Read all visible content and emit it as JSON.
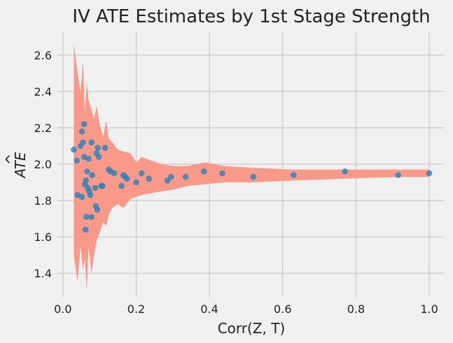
{
  "chart_data": {
    "type": "scatter",
    "title": "IV ATE Estimates by 1st Stage Strength",
    "xlabel": "Corr(Z, T)",
    "ylabel": "ATE",
    "ylabel_accent": "^",
    "xlim": [
      -0.015,
      1.04
    ],
    "ylim": [
      1.27,
      2.73
    ],
    "xticks": [
      "0.0",
      "0.2",
      "0.4",
      "0.6",
      "0.8",
      "1.0"
    ],
    "yticks": [
      "1.4",
      "1.6",
      "1.8",
      "2.0",
      "2.2",
      "2.4",
      "2.6"
    ],
    "grid": true,
    "colors": {
      "band": "#f8998a",
      "points": "#2d7fb8"
    },
    "band": [
      {
        "x": 0.03,
        "lo": 1.5,
        "hi": 2.66
      },
      {
        "x": 0.04,
        "lo": 1.35,
        "hi": 2.5
      },
      {
        "x": 0.048,
        "lo": 1.55,
        "hi": 2.4
      },
      {
        "x": 0.055,
        "lo": 1.42,
        "hi": 2.57
      },
      {
        "x": 0.06,
        "lo": 1.48,
        "hi": 2.28
      },
      {
        "x": 0.065,
        "lo": 1.3,
        "hi": 2.45
      },
      {
        "x": 0.07,
        "lo": 1.55,
        "hi": 2.35
      },
      {
        "x": 0.078,
        "lo": 1.4,
        "hi": 2.3
      },
      {
        "x": 0.085,
        "lo": 1.5,
        "hi": 2.25
      },
      {
        "x": 0.092,
        "lo": 1.58,
        "hi": 2.32
      },
      {
        "x": 0.1,
        "lo": 1.62,
        "hi": 2.22
      },
      {
        "x": 0.11,
        "lo": 1.68,
        "hi": 2.15
      },
      {
        "x": 0.118,
        "lo": 1.66,
        "hi": 2.24
      },
      {
        "x": 0.125,
        "lo": 1.72,
        "hi": 2.14
      },
      {
        "x": 0.135,
        "lo": 1.76,
        "hi": 2.12
      },
      {
        "x": 0.15,
        "lo": 1.78,
        "hi": 2.08
      },
      {
        "x": 0.165,
        "lo": 1.76,
        "hi": 2.07
      },
      {
        "x": 0.185,
        "lo": 1.81,
        "hi": 2.06
      },
      {
        "x": 0.2,
        "lo": 1.82,
        "hi": 2.01
      },
      {
        "x": 0.215,
        "lo": 1.83,
        "hi": 2.04
      },
      {
        "x": 0.24,
        "lo": 1.84,
        "hi": 2.02
      },
      {
        "x": 0.27,
        "lo": 1.85,
        "hi": 2.0
      },
      {
        "x": 0.3,
        "lo": 1.86,
        "hi": 1.99
      },
      {
        "x": 0.34,
        "lo": 1.88,
        "hi": 1.99
      },
      {
        "x": 0.39,
        "lo": 1.89,
        "hi": 2.01
      },
      {
        "x": 0.44,
        "lo": 1.9,
        "hi": 1.99
      },
      {
        "x": 0.52,
        "lo": 1.9,
        "hi": 1.98
      },
      {
        "x": 0.63,
        "lo": 1.91,
        "hi": 1.97
      },
      {
        "x": 0.77,
        "lo": 1.92,
        "hi": 1.97
      },
      {
        "x": 0.92,
        "lo": 1.93,
        "hi": 1.97
      },
      {
        "x": 1.0,
        "lo": 1.93,
        "hi": 1.97
      }
    ],
    "points": [
      {
        "x": 0.03,
        "y": 2.08
      },
      {
        "x": 0.038,
        "y": 2.02
      },
      {
        "x": 0.04,
        "y": 1.83
      },
      {
        "x": 0.048,
        "y": 2.1
      },
      {
        "x": 0.052,
        "y": 2.18
      },
      {
        "x": 0.052,
        "y": 1.82
      },
      {
        "x": 0.055,
        "y": 2.12
      },
      {
        "x": 0.058,
        "y": 2.22
      },
      {
        "x": 0.058,
        "y": 2.04
      },
      {
        "x": 0.06,
        "y": 1.89
      },
      {
        "x": 0.062,
        "y": 1.64
      },
      {
        "x": 0.063,
        "y": 1.91
      },
      {
        "x": 0.064,
        "y": 1.71
      },
      {
        "x": 0.066,
        "y": 1.96
      },
      {
        "x": 0.068,
        "y": 1.87
      },
      {
        "x": 0.07,
        "y": 2.03
      },
      {
        "x": 0.072,
        "y": 1.85
      },
      {
        "x": 0.075,
        "y": 1.83
      },
      {
        "x": 0.078,
        "y": 1.71
      },
      {
        "x": 0.078,
        "y": 2.12
      },
      {
        "x": 0.08,
        "y": 1.94
      },
      {
        "x": 0.088,
        "y": 1.87
      },
      {
        "x": 0.09,
        "y": 1.77
      },
      {
        "x": 0.092,
        "y": 2.06
      },
      {
        "x": 0.094,
        "y": 1.75
      },
      {
        "x": 0.095,
        "y": 2.09
      },
      {
        "x": 0.098,
        "y": 2.04
      },
      {
        "x": 0.105,
        "y": 1.88
      },
      {
        "x": 0.108,
        "y": 1.88
      },
      {
        "x": 0.115,
        "y": 2.09
      },
      {
        "x": 0.125,
        "y": 1.97
      },
      {
        "x": 0.13,
        "y": 1.96
      },
      {
        "x": 0.14,
        "y": 1.95
      },
      {
        "x": 0.16,
        "y": 1.88
      },
      {
        "x": 0.165,
        "y": 1.94
      },
      {
        "x": 0.17,
        "y": 1.93
      },
      {
        "x": 0.175,
        "y": 1.92
      },
      {
        "x": 0.2,
        "y": 1.9
      },
      {
        "x": 0.215,
        "y": 1.95
      },
      {
        "x": 0.235,
        "y": 1.92
      },
      {
        "x": 0.285,
        "y": 1.91
      },
      {
        "x": 0.295,
        "y": 1.93
      },
      {
        "x": 0.335,
        "y": 1.93
      },
      {
        "x": 0.385,
        "y": 1.96
      },
      {
        "x": 0.435,
        "y": 1.95
      },
      {
        "x": 0.52,
        "y": 1.93
      },
      {
        "x": 0.63,
        "y": 1.94
      },
      {
        "x": 0.77,
        "y": 1.96
      },
      {
        "x": 0.915,
        "y": 1.94
      },
      {
        "x": 1.0,
        "y": 1.95
      }
    ]
  }
}
